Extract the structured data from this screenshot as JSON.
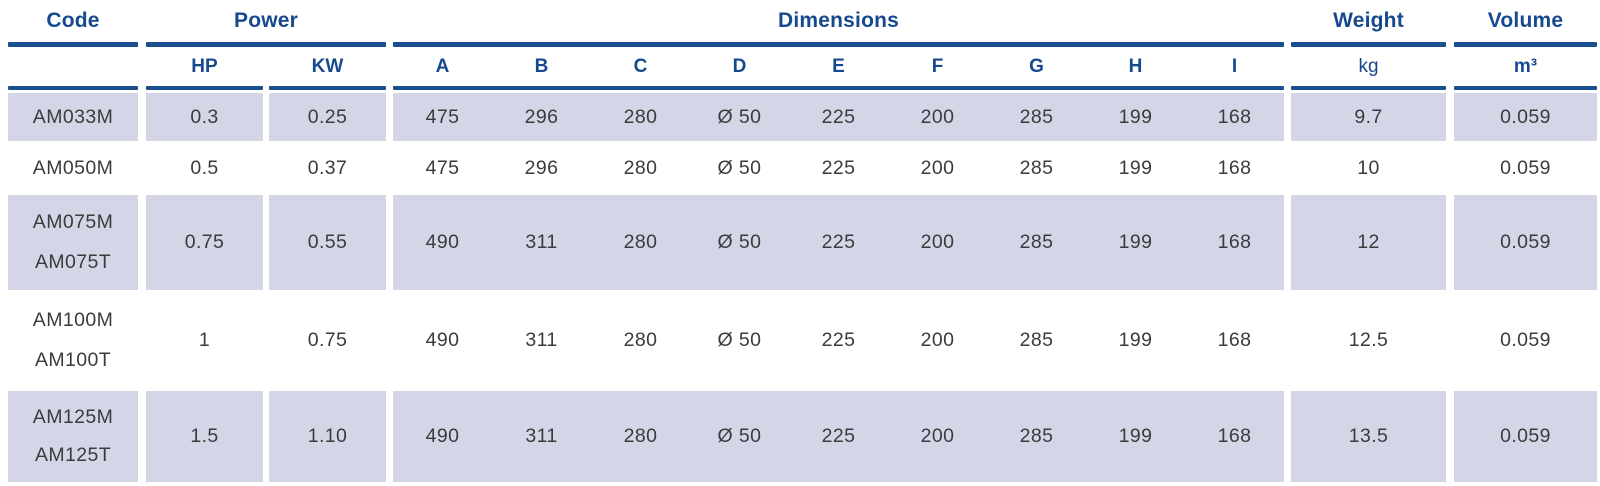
{
  "colors": {
    "header_blue": "#17498e",
    "rule_blue": "#1a4f8e",
    "row_shade": "#d4d6e7",
    "text_color": "#3b3b3d"
  },
  "table": {
    "groups": {
      "code": "Code",
      "power": "Power",
      "dimensions": "Dimensions",
      "weight": "Weight",
      "volume": "Volume"
    },
    "subheaders": {
      "hp": "HP",
      "kw": "KW",
      "dims": [
        "A",
        "B",
        "C",
        "D",
        "E",
        "F",
        "G",
        "H",
        "I"
      ],
      "kg": "kg",
      "m3": "m³"
    },
    "rows": [
      {
        "codes": [
          "AM033M"
        ],
        "hp": "0.3",
        "kw": "0.25",
        "dims": [
          "475",
          "296",
          "280",
          "Ø 50",
          "225",
          "200",
          "285",
          "199",
          "168"
        ],
        "kg": "9.7",
        "m3": "0.059"
      },
      {
        "codes": [
          "AM050M"
        ],
        "hp": "0.5",
        "kw": "0.37",
        "dims": [
          "475",
          "296",
          "280",
          "Ø 50",
          "225",
          "200",
          "285",
          "199",
          "168"
        ],
        "kg": "10",
        "m3": "0.059"
      },
      {
        "codes": [
          "AM075M",
          "AM075T"
        ],
        "hp": "0.75",
        "kw": "0.55",
        "dims": [
          "490",
          "311",
          "280",
          "Ø 50",
          "225",
          "200",
          "285",
          "199",
          "168"
        ],
        "kg": "12",
        "m3": "0.059"
      },
      {
        "codes": [
          "AM100M",
          "AM100T"
        ],
        "hp": "1",
        "kw": "0.75",
        "dims": [
          "490",
          "311",
          "280",
          "Ø 50",
          "225",
          "200",
          "285",
          "199",
          "168"
        ],
        "kg": "12.5",
        "m3": "0.059"
      },
      {
        "codes": [
          "AM125M",
          "AM125T"
        ],
        "hp": "1.5",
        "kw": "1.10",
        "dims": [
          "490",
          "311",
          "280",
          "Ø 50",
          "225",
          "200",
          "285",
          "199",
          "168"
        ],
        "kg": "13.5",
        "m3": "0.059"
      }
    ]
  }
}
